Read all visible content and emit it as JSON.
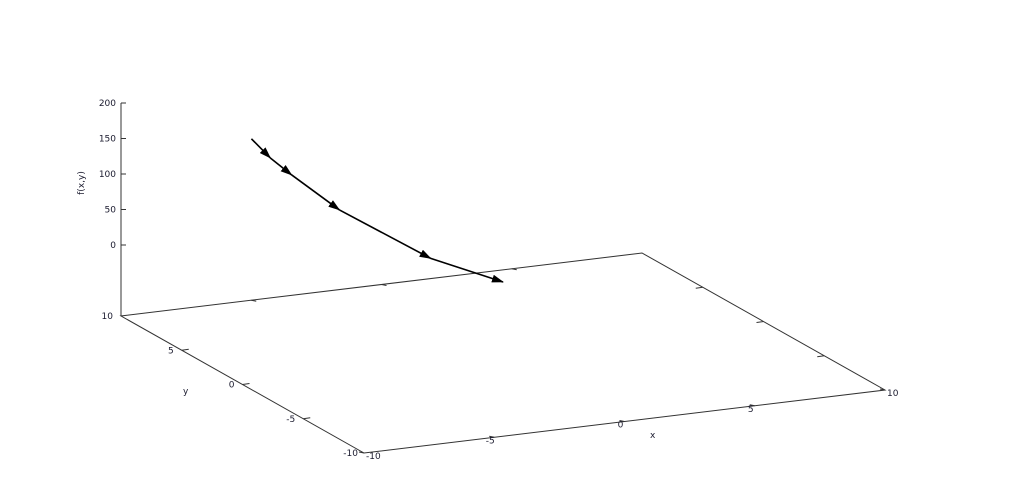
{
  "chart_data": {
    "type": "line3d",
    "title": "",
    "xlabel": "x",
    "ylabel": "y",
    "zlabel": "f(x,y)",
    "xlim": [
      -10,
      10
    ],
    "ylim": [
      -10,
      10
    ],
    "zlim": [
      -100,
      200
    ],
    "x_ticks": [
      "-10",
      "-5",
      "0",
      "5",
      "10"
    ],
    "y_ticks": [
      "10",
      "5",
      "0",
      "-5",
      "-10"
    ],
    "z_ticks": [
      "0",
      "50",
      "100",
      "150",
      "200"
    ],
    "grid": false,
    "series": [
      {
        "style": "arrows",
        "color": "#000000",
        "points": [
          {
            "x": -4.9,
            "y": 10.2,
            "z": 125
          },
          {
            "x": -4.5,
            "y": 9.5,
            "z": 103
          },
          {
            "x": -4.1,
            "y": 8.6,
            "z": 86
          },
          {
            "x": -3.2,
            "y": 6.6,
            "z": 52
          },
          {
            "x": -1.4,
            "y": 2.95,
            "z": 11
          },
          {
            "x": 0,
            "y": 0,
            "z": 0
          }
        ]
      }
    ]
  }
}
